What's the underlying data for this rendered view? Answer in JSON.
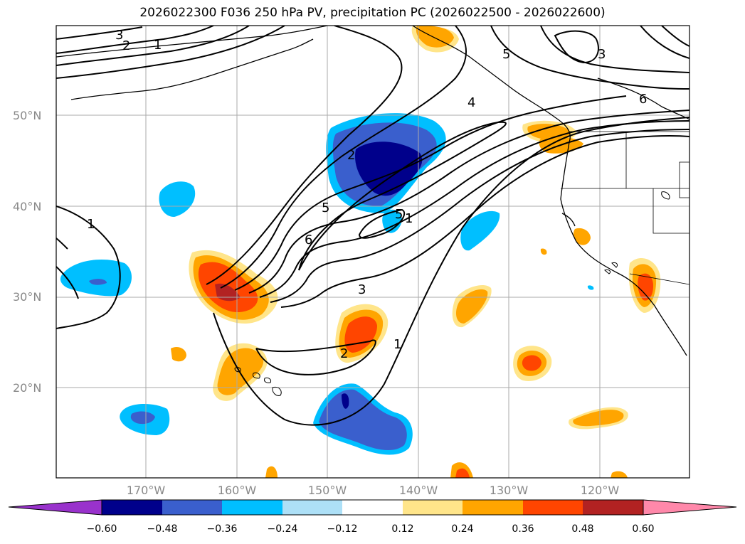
{
  "title": "2026022300 F036 250 hPa PV, precipitation PC (2026022500 - 2026022600)",
  "lat_labels": [
    "50°N",
    "40°N",
    "30°N",
    "20°N"
  ],
  "lon_labels": [
    "170°W",
    "160°W",
    "150°W",
    "140°W",
    "130°W",
    "120°W"
  ],
  "colorbar": {
    "ticks": [
      "−0.60",
      "−0.48",
      "−0.36",
      "−0.24",
      "−0.12",
      "0.12",
      "0.24",
      "0.36",
      "0.48",
      "0.60"
    ],
    "colors": [
      "#9932cc",
      "#00008b",
      "#3a5fcd",
      "#00bfff",
      "#ade0f7",
      "#ffffff",
      "#ffe58a",
      "#ffa500",
      "#ff4500",
      "#b22222",
      "#ff88aa"
    ]
  },
  "pv_contour_labels": [
    "1",
    "1",
    "2",
    "2",
    "3",
    "3",
    "4",
    "5",
    "5",
    "6",
    "6",
    "1",
    "5",
    "1",
    "2",
    "3"
  ]
}
